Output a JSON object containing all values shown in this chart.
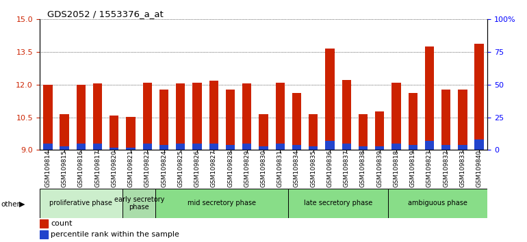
{
  "title": "GDS2052 / 1553376_a_at",
  "samples": [
    "GSM109814",
    "GSM109815",
    "GSM109816",
    "GSM109817",
    "GSM109820",
    "GSM109821",
    "GSM109822",
    "GSM109824",
    "GSM109825",
    "GSM109826",
    "GSM109827",
    "GSM109828",
    "GSM109829",
    "GSM109830",
    "GSM109831",
    "GSM109834",
    "GSM109835",
    "GSM109836",
    "GSM109837",
    "GSM109838",
    "GSM109839",
    "GSM109818",
    "GSM109819",
    "GSM109823",
    "GSM109832",
    "GSM109833",
    "GSM109840"
  ],
  "count_values": [
    12.0,
    10.65,
    12.0,
    12.05,
    10.57,
    10.52,
    12.1,
    11.78,
    12.05,
    12.1,
    12.18,
    11.78,
    12.05,
    10.65,
    12.1,
    11.62,
    10.65,
    13.67,
    12.22,
    10.65,
    10.78,
    12.1,
    11.62,
    13.75,
    11.78,
    11.78,
    13.88
  ],
  "percentile_values": [
    5,
    3,
    5,
    5,
    2,
    2,
    5,
    4,
    5,
    5,
    5,
    4,
    5,
    3,
    5,
    4,
    3,
    7,
    5,
    3,
    3,
    5,
    4,
    7,
    4,
    4,
    8
  ],
  "ylim_left": [
    9,
    15
  ],
  "ylim_right": [
    0,
    100
  ],
  "yticks_left": [
    9,
    10.5,
    12,
    13.5,
    15
  ],
  "yticks_right": [
    0,
    25,
    50,
    75,
    100
  ],
  "bar_color_red": "#cc2200",
  "bar_color_blue": "#2244cc",
  "bar_width": 0.55,
  "phase_regions": [
    {
      "label": "proliferative phase",
      "start": 0,
      "end": 4,
      "color": "#cceecc"
    },
    {
      "label": "early secretory\nphase",
      "start": 5,
      "end": 6,
      "color": "#aaddaa"
    },
    {
      "label": "mid secretory phase",
      "start": 7,
      "end": 14,
      "color": "#88dd88"
    },
    {
      "label": "late secretory phase",
      "start": 15,
      "end": 20,
      "color": "#88dd88"
    },
    {
      "label": "ambiguous phase",
      "start": 21,
      "end": 26,
      "color": "#88dd88"
    }
  ]
}
